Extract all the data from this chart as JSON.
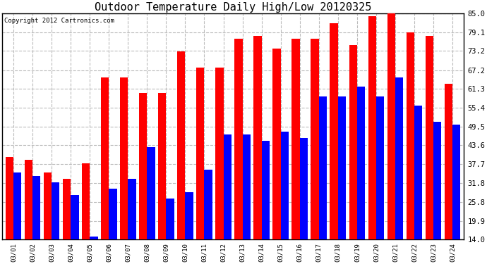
{
  "title": "Outdoor Temperature Daily High/Low 20120325",
  "copyright": "Copyright 2012 Cartronics.com",
  "dates": [
    "03/01",
    "03/02",
    "03/03",
    "03/04",
    "03/05",
    "03/06",
    "03/07",
    "03/08",
    "03/09",
    "03/10",
    "03/11",
    "03/12",
    "03/13",
    "03/14",
    "03/15",
    "03/16",
    "03/17",
    "03/18",
    "03/19",
    "03/20",
    "03/21",
    "03/22",
    "03/23",
    "03/24"
  ],
  "highs": [
    40,
    39,
    35,
    33,
    38,
    65,
    65,
    60,
    60,
    73,
    68,
    68,
    77,
    78,
    74,
    77,
    77,
    82,
    75,
    84,
    85,
    79,
    78,
    63
  ],
  "lows": [
    35,
    34,
    32,
    28,
    15,
    30,
    33,
    43,
    27,
    29,
    36,
    47,
    47,
    45,
    48,
    46,
    59,
    59,
    62,
    59,
    65,
    56,
    51,
    50
  ],
  "high_color": "#ff0000",
  "low_color": "#0000ff",
  "bg_color": "#ffffff",
  "plot_bg_color": "#ffffff",
  "grid_color": "#bbbbbb",
  "yticks": [
    14.0,
    19.9,
    25.8,
    31.8,
    37.7,
    43.6,
    49.5,
    55.4,
    61.3,
    67.2,
    73.2,
    79.1,
    85.0
  ],
  "ylim": [
    14.0,
    85.0
  ],
  "bar_width": 0.42,
  "title_fontsize": 11,
  "copyright_fontsize": 6.5
}
